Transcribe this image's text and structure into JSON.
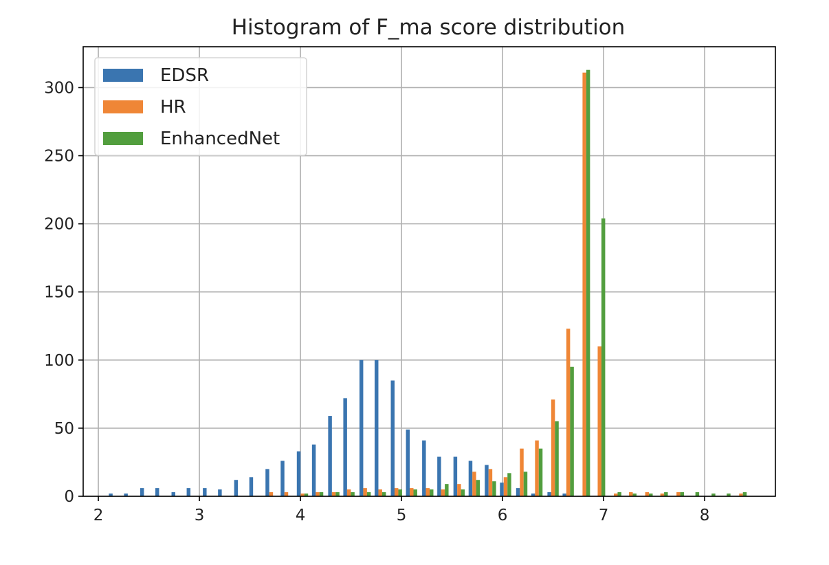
{
  "chart_data": {
    "type": "bar",
    "title": "Histogram of F_ma score distribution",
    "xlabel": "",
    "ylabel": "",
    "xlim": [
      1.85,
      8.7
    ],
    "ylim": [
      0,
      330
    ],
    "xticks": [
      2,
      3,
      4,
      5,
      6,
      7,
      8
    ],
    "yticks": [
      0,
      50,
      100,
      150,
      200,
      250,
      300
    ],
    "grid": true,
    "legend_position": "top-left",
    "bin_centers": [
      2.16,
      2.31,
      2.47,
      2.62,
      2.78,
      2.93,
      3.09,
      3.24,
      3.4,
      3.55,
      3.71,
      3.86,
      4.02,
      4.17,
      4.33,
      4.48,
      4.64,
      4.79,
      4.95,
      5.1,
      5.26,
      5.41,
      5.57,
      5.72,
      5.88,
      6.03,
      6.19,
      6.34,
      6.5,
      6.65,
      6.81,
      6.96,
      7.12,
      7.27,
      7.43,
      7.58,
      7.74,
      7.89,
      8.05,
      8.2,
      8.36
    ],
    "series": [
      {
        "name": "EDSR",
        "color": "#3a75b0",
        "values": [
          2,
          2,
          6,
          6,
          3,
          6,
          6,
          5,
          12,
          14,
          20,
          26,
          33,
          38,
          59,
          72,
          100,
          100,
          85,
          49,
          41,
          29,
          29,
          26,
          23,
          10,
          6,
          2,
          3,
          2,
          0,
          0,
          0,
          0,
          0,
          0,
          0,
          0,
          0,
          0,
          0
        ]
      },
      {
        "name": "HR",
        "color": "#ef8636",
        "values": [
          0,
          0,
          0,
          0,
          0,
          0,
          0,
          0,
          0,
          0,
          3,
          3,
          2,
          3,
          3,
          5,
          6,
          5,
          6,
          6,
          6,
          5,
          9,
          18,
          20,
          14,
          35,
          41,
          71,
          123,
          311,
          110,
          2,
          3,
          3,
          2,
          3,
          0,
          0,
          0,
          2
        ]
      },
      {
        "name": "EnhancedNet",
        "color": "#529e3e",
        "values": [
          0,
          0,
          0,
          0,
          0,
          0,
          0,
          0,
          0,
          0,
          0,
          0,
          2,
          3,
          3,
          3,
          3,
          3,
          5,
          5,
          5,
          9,
          5,
          12,
          11,
          17,
          18,
          35,
          55,
          95,
          313,
          204,
          3,
          2,
          2,
          3,
          3,
          3,
          2,
          2,
          3
        ]
      }
    ]
  }
}
